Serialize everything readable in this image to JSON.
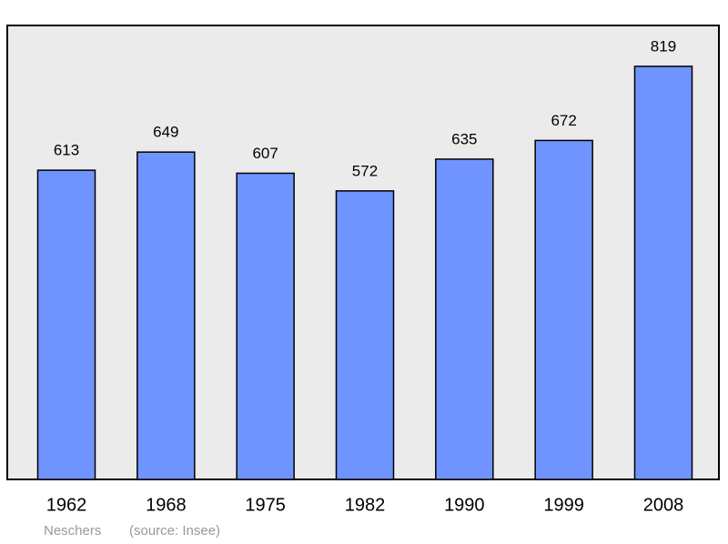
{
  "chart_data": {
    "type": "bar",
    "categories": [
      "1962",
      "1968",
      "1975",
      "1982",
      "1990",
      "1999",
      "2008"
    ],
    "values": [
      613,
      649,
      607,
      572,
      635,
      672,
      819
    ],
    "color": "#7094ff",
    "ylim": [
      0,
      900
    ],
    "place": "Neschers",
    "source": "(source: Insee)"
  }
}
